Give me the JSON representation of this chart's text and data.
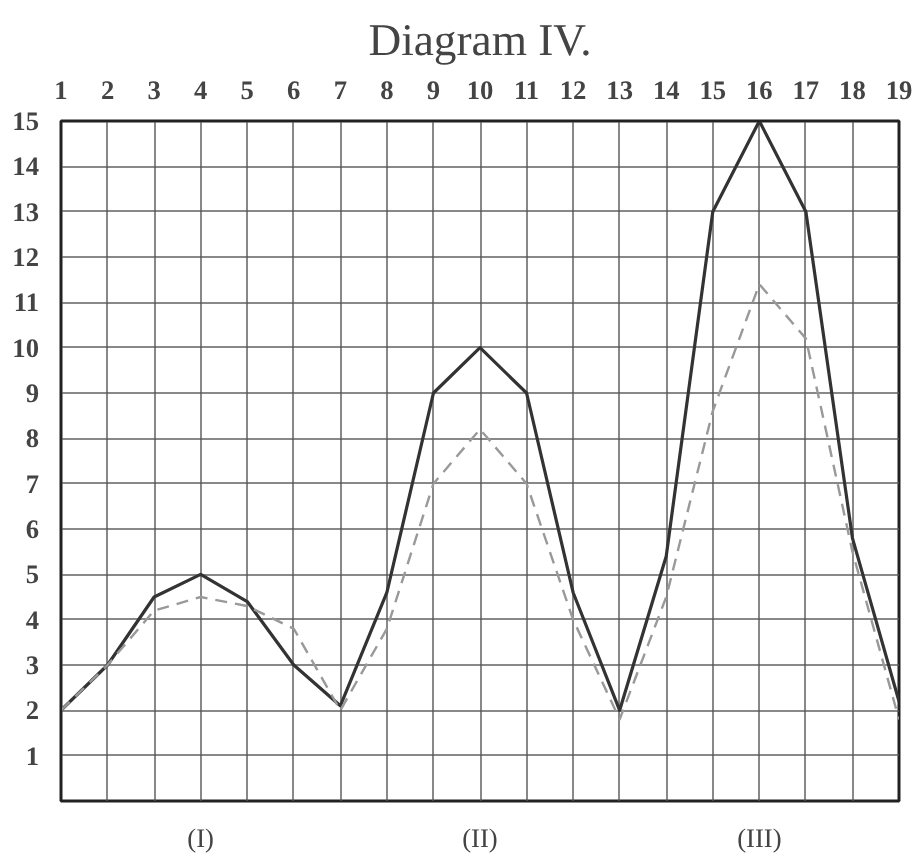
{
  "chart_data": {
    "type": "line",
    "title": "Diagram IV.",
    "x": [
      1,
      2,
      3,
      4,
      5,
      6,
      7,
      8,
      9,
      10,
      11,
      12,
      13,
      14,
      15,
      16,
      17,
      18,
      19
    ],
    "series": [
      {
        "color": "#333333",
        "line_style": "solid",
        "values": [
          2,
          3,
          4.5,
          5,
          4.4,
          3,
          2.1,
          4.6,
          9,
          10,
          9,
          4.6,
          2,
          5.4,
          13,
          15,
          13,
          5.8,
          2.2
        ]
      },
      {
        "color": "#999999",
        "line_style": "dashed",
        "values": [
          2,
          3,
          4.2,
          4.5,
          4.3,
          3.8,
          2,
          3.8,
          7,
          8.2,
          7,
          4,
          1.8,
          4.5,
          8.6,
          11.4,
          10.2,
          5.5,
          1.8
        ]
      }
    ],
    "xlim": [
      1,
      19
    ],
    "ylim": [
      0,
      15
    ],
    "xticks": [
      1,
      2,
      3,
      4,
      5,
      6,
      7,
      8,
      9,
      10,
      11,
      12,
      13,
      14,
      15,
      16,
      17,
      18,
      19
    ],
    "yticks": [
      1,
      2,
      3,
      4,
      5,
      6,
      7,
      8,
      9,
      10,
      11,
      12,
      13,
      14,
      15
    ],
    "grid": true,
    "marker": "none",
    "annotations": [
      "(I)",
      "(II)",
      "(III)"
    ]
  }
}
